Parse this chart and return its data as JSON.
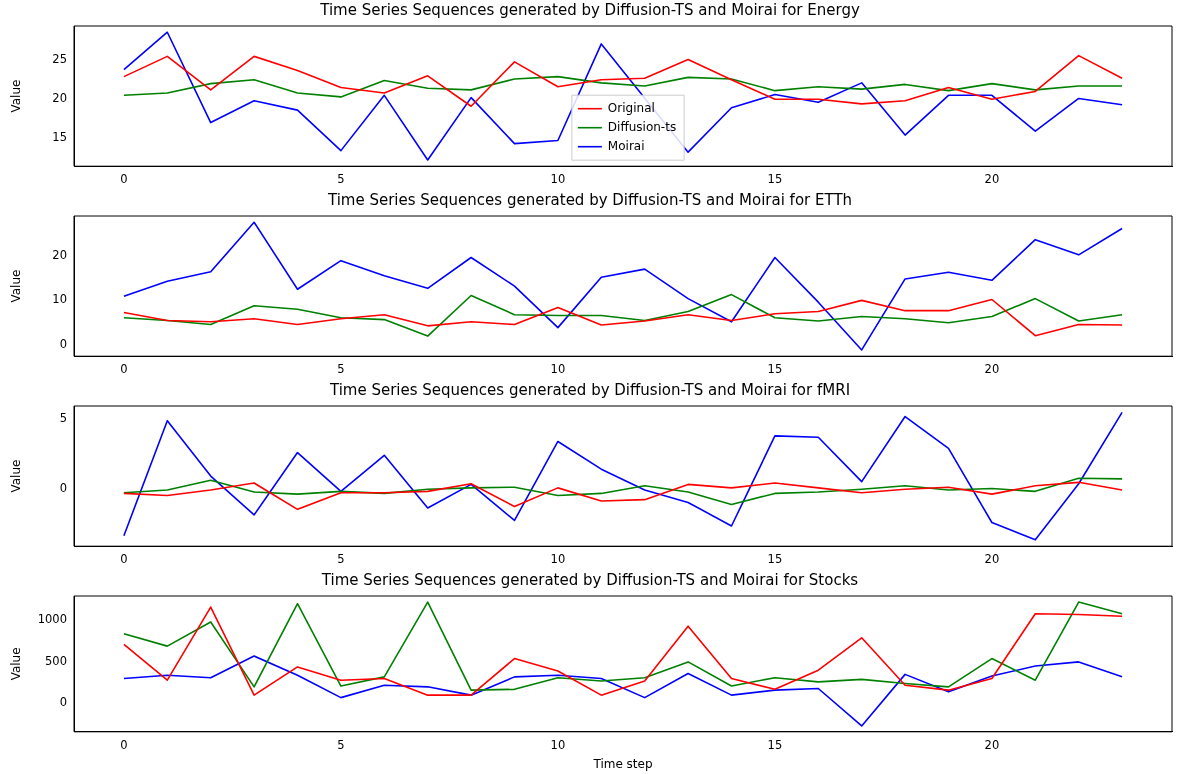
{
  "chart_data": [
    {
      "type": "line",
      "title": "Time Series Sequences generated by Diffusion-TS and Moirai for Energy",
      "ylabel": "Value",
      "x": [
        0,
        1,
        2,
        3,
        4,
        5,
        6,
        7,
        8,
        9,
        10,
        11,
        12,
        13,
        14,
        15,
        16,
        17,
        18,
        19,
        20,
        21,
        22,
        23
      ],
      "xlim": [
        -1.15,
        24.15
      ],
      "xticks": [
        0,
        5,
        10,
        15,
        20
      ],
      "ylim": [
        11.4,
        29.4
      ],
      "yticks": [
        15,
        20,
        25
      ],
      "grid": false,
      "legend": "bottom",
      "marker": "none",
      "line_style": "solid",
      "series": [
        {
          "name": "Original",
          "color": "#ff0000",
          "values": [
            22.9,
            25.5,
            21.2,
            25.5,
            23.7,
            21.5,
            20.8,
            23.0,
            19.1,
            24.8,
            21.6,
            22.5,
            22.7,
            25.1,
            22.5,
            20.0,
            20.0,
            19.4,
            19.8,
            21.5,
            20.0,
            21.0,
            25.6,
            22.7
          ]
        },
        {
          "name": "Diffusion-ts",
          "color": "#008000",
          "values": [
            20.5,
            20.8,
            22.0,
            22.5,
            20.8,
            20.3,
            22.4,
            21.4,
            21.2,
            22.6,
            22.9,
            22.1,
            21.7,
            22.8,
            22.6,
            21.1,
            21.6,
            21.3,
            21.9,
            21.1,
            22.0,
            21.2,
            21.7,
            21.7
          ]
        },
        {
          "name": "Moirai",
          "color": "#0000ff",
          "values": [
            23.8,
            28.6,
            17.0,
            19.8,
            18.6,
            13.4,
            20.5,
            12.2,
            20.2,
            14.3,
            14.7,
            27.1,
            null,
            13.2,
            18.9,
            20.6,
            19.6,
            22.1,
            15.4,
            20.5,
            20.5,
            15.9,
            20.1,
            19.3
          ]
        }
      ]
    },
    {
      "type": "line",
      "title": "Time Series Sequences generated by Diffusion-TS and Moirai for ETTh",
      "ylabel": "Value",
      "x": [
        0,
        1,
        2,
        3,
        4,
        5,
        6,
        7,
        8,
        9,
        10,
        11,
        12,
        13,
        14,
        15,
        16,
        17,
        18,
        19,
        20,
        21,
        22,
        23
      ],
      "xlim": [
        -1.15,
        24.15
      ],
      "xticks": [
        0,
        5,
        10,
        15,
        20
      ],
      "ylim": [
        -2.5,
        28.9
      ],
      "yticks": [
        0,
        10,
        20
      ],
      "grid": false,
      "marker": "none",
      "line_style": "solid",
      "series": [
        {
          "color": "#ff0000",
          "values": [
            7.3,
            5.5,
            5.2,
            5.9,
            4.6,
            5.9,
            6.8,
            4.3,
            5.2,
            4.6,
            8.4,
            4.5,
            5.4,
            6.8,
            5.5,
            7.0,
            7.5,
            10.0,
            7.7,
            7.7,
            10.2,
            2.1,
            4.6,
            4.5
          ]
        },
        {
          "color": "#008000",
          "values": [
            6.1,
            5.5,
            4.6,
            8.8,
            8.0,
            6.1,
            5.7,
            2.0,
            11.1,
            6.8,
            6.6,
            6.6,
            5.5,
            7.5,
            11.3,
            6.1,
            5.4,
            6.4,
            5.9,
            5.0,
            6.4,
            10.4,
            5.4,
            6.8
          ]
        },
        {
          "color": "#0000ff",
          "values": [
            10.9,
            14.3,
            16.4,
            27.5,
            12.5,
            18.9,
            15.5,
            12.7,
            19.6,
            13.2,
            3.9,
            15.2,
            17.0,
            10.4,
            5.2,
            19.6,
            9.6,
            -1.1,
            14.8,
            16.3,
            14.5,
            23.6,
            20.2,
            26.1
          ]
        }
      ]
    },
    {
      "type": "line",
      "title": "Time Series Sequences generated by Diffusion-TS and Moirai for fMRI",
      "ylabel": "Value",
      "x": [
        0,
        1,
        2,
        3,
        4,
        5,
        6,
        7,
        8,
        9,
        10,
        11,
        12,
        13,
        14,
        15,
        16,
        17,
        18,
        19,
        20,
        21,
        22,
        23
      ],
      "xlim": [
        -1.15,
        24.15
      ],
      "xticks": [
        0,
        5,
        10,
        15,
        20
      ],
      "ylim": [
        -4.16,
        5.96
      ],
      "yticks": [
        0,
        5
      ],
      "grid": false,
      "marker": "none",
      "line_style": "solid",
      "series": [
        {
          "color": "#ff0000",
          "values": [
            -0.35,
            -0.5,
            -0.1,
            0.4,
            -1.5,
            -0.3,
            -0.3,
            -0.2,
            0.35,
            -1.3,
            0.05,
            -0.9,
            -0.8,
            0.3,
            0.05,
            0.4,
            0.05,
            -0.3,
            -0.05,
            0.1,
            -0.4,
            0.2,
            0.45,
            -0.1
          ]
        },
        {
          "color": "#008000",
          "values": [
            -0.3,
            -0.1,
            0.6,
            -0.25,
            -0.4,
            -0.2,
            -0.35,
            -0.05,
            0.05,
            0.1,
            -0.5,
            -0.35,
            0.2,
            -0.25,
            -1.15,
            -0.35,
            -0.25,
            -0.05,
            0.2,
            -0.1,
            0,
            -0.2,
            0.75,
            0.7
          ]
        },
        {
          "color": "#0000ff",
          "values": [
            -3.4,
            4.9,
            0.9,
            -1.9,
            2.6,
            -0.2,
            2.4,
            -1.4,
            0.3,
            -2.3,
            3.4,
            1.4,
            -0.1,
            -1.0,
            -2.7,
            3.8,
            3.7,
            0.5,
            5.2,
            2.9,
            -2.45,
            -3.7,
            0.35,
            5.5
          ]
        }
      ]
    },
    {
      "type": "line",
      "title": "Time Series Sequences generated by Diffusion-TS and Moirai for Stocks",
      "xlabel": "Time step",
      "ylabel": "Value",
      "x": [
        0,
        1,
        2,
        3,
        4,
        5,
        6,
        7,
        8,
        9,
        10,
        11,
        12,
        13,
        14,
        15,
        16,
        17,
        18,
        19,
        20,
        21,
        22,
        23
      ],
      "xlim": [
        -1.15,
        24.15
      ],
      "xticks": [
        0,
        5,
        10,
        15,
        20
      ],
      "ylim": [
        -341,
        1293
      ],
      "yticks": [
        0,
        500,
        1000
      ],
      "grid": false,
      "marker": "none",
      "line_style": "solid",
      "series": [
        {
          "color": "#ff0000",
          "values": [
            710,
            280,
            1160,
            100,
            440,
            280,
            300,
            100,
            100,
            540,
            390,
            100,
            270,
            930,
            300,
            170,
            400,
            790,
            220,
            160,
            300,
            1080,
            1070,
            1050
          ]
        },
        {
          "color": "#008000",
          "values": [
            840,
            690,
            980,
            200,
            1200,
            210,
            320,
            1220,
            160,
            170,
            310,
            270,
            310,
            500,
            210,
            310,
            260,
            290,
            240,
            200,
            540,
            280,
            1220,
            1080
          ]
        },
        {
          "color": "#0000ff",
          "values": [
            300,
            340,
            310,
            570,
            340,
            70,
            220,
            200,
            100,
            320,
            340,
            300,
            70,
            360,
            100,
            160,
            180,
            -270,
            350,
            140,
            330,
            450,
            500,
            320
          ]
        }
      ]
    }
  ]
}
